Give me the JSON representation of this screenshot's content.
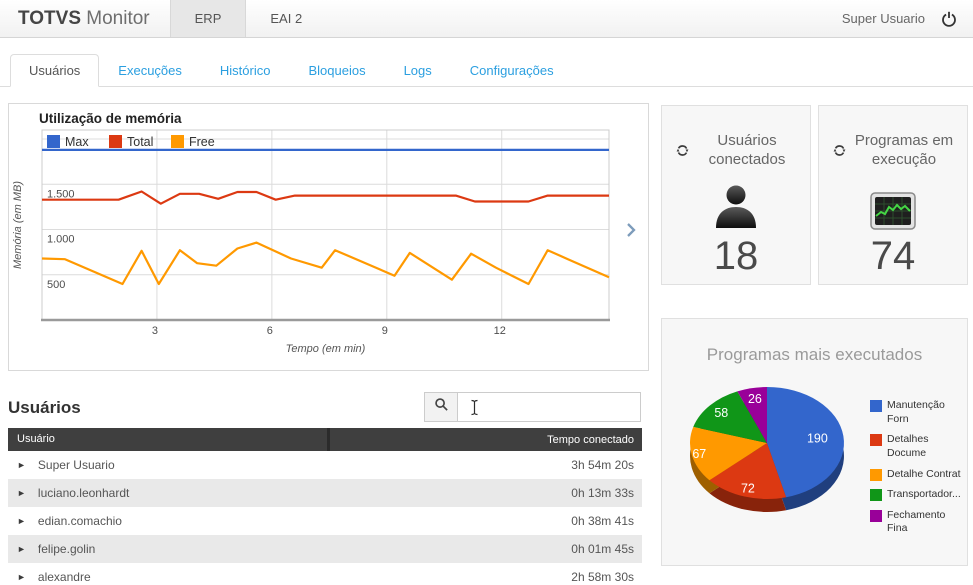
{
  "header": {
    "brand_bold": "TOTVS",
    "brand_light": " Monitor",
    "env_tabs": [
      {
        "label": "ERP",
        "active": true
      },
      {
        "label": "EAI 2",
        "active": false
      }
    ],
    "user_label": "Super Usuario"
  },
  "nav": {
    "tabs": [
      "Usuários",
      "Execuções",
      "Histórico",
      "Bloqueios",
      "Logs",
      "Configurações"
    ],
    "active": "Usuários"
  },
  "memory_panel": {
    "title": "Utilização de memória"
  },
  "cards": [
    {
      "title": "Usuários conectados",
      "value": "18",
      "icon": "user-silhouette-icon"
    },
    {
      "title": "Programas em execução",
      "value": "74",
      "icon": "monitor-graph-icon"
    }
  ],
  "pie_panel": {
    "title": "Programas mais executados"
  },
  "users": {
    "heading": "Usuários",
    "search_value": "",
    "columns": [
      "Usuário",
      "Tempo conectado"
    ],
    "rows": [
      {
        "name": "Super Usuario",
        "time": "3h 54m 20s"
      },
      {
        "name": "luciano.leonhardt",
        "time": "0h 13m 33s"
      },
      {
        "name": "edian.comachio",
        "time": "0h 38m 41s"
      },
      {
        "name": "felipe.golin",
        "time": "0h 01m 45s"
      },
      {
        "name": "alexandre",
        "time": "2h 58m 30s"
      }
    ]
  },
  "icons": {
    "row_expand": "►"
  },
  "colors": {
    "nav_link": "#2b9fe0",
    "table_header_bg": "#3f3f3f",
    "panel_bg": "#f7f7f7",
    "series_blue": "#3366CC",
    "series_red": "#DC3912",
    "series_orange": "#FF9900",
    "series_green": "#109618",
    "series_purple": "#990099"
  },
  "chart_data": [
    {
      "type": "line",
      "title": "Utilização de memória",
      "xlabel": "Tempo (em min)",
      "ylabel": "Memória (em MB)",
      "xlim": [
        0,
        14.8
      ],
      "ylim": [
        0,
        2100
      ],
      "xticks": [
        3,
        6,
        9,
        12
      ],
      "yticks": [
        {
          "v": 500,
          "label": "500"
        },
        {
          "v": 1000,
          "label": "1.000"
        },
        {
          "v": 1500,
          "label": "1.500"
        },
        {
          "v": 2000,
          "label": ""
        }
      ],
      "grid": true,
      "legend_position": "top-left-inside",
      "series": [
        {
          "name": "Max",
          "color": "#3366CC",
          "x": [
            0,
            14.8
          ],
          "y": [
            1880,
            1880
          ]
        },
        {
          "name": "Total",
          "color": "#DC3912",
          "x": [
            0,
            2.0,
            2.6,
            3.1,
            3.6,
            4.1,
            4.6,
            5.1,
            5.6,
            6.1,
            6.6,
            10.8,
            11.3,
            12.7,
            13.2,
            14.8
          ],
          "y": [
            1330,
            1330,
            1420,
            1285,
            1395,
            1395,
            1340,
            1415,
            1415,
            1330,
            1375,
            1375,
            1310,
            1310,
            1375,
            1375
          ]
        },
        {
          "name": "Free",
          "color": "#FF9900",
          "x": [
            0,
            0.6,
            2.1,
            2.6,
            3.05,
            3.6,
            4.05,
            4.55,
            5.1,
            5.6,
            6.5,
            7.3,
            7.65,
            9.2,
            9.6,
            10.7,
            11.2,
            11.85,
            12.7,
            13.2,
            13.75,
            14.8
          ],
          "y": [
            680,
            672,
            398,
            765,
            398,
            772,
            628,
            600,
            790,
            855,
            680,
            578,
            772,
            490,
            742,
            445,
            733,
            578,
            398,
            772,
            668,
            472
          ]
        }
      ]
    },
    {
      "type": "pie",
      "title": "Programas mais executados",
      "labels": [
        "Manutenção Forn",
        "Detalhes Docume",
        "Detalhe Contrat",
        "Transportador...",
        "Fechamento Fina"
      ],
      "values": [
        190,
        72,
        67,
        58,
        26
      ],
      "colors": [
        "#3366CC",
        "#DC3912",
        "#FF9900",
        "#109618",
        "#990099"
      ],
      "legend": [
        {
          "line1": "Manutenção",
          "line2": "Forn"
        },
        {
          "line1": "Detalhes",
          "line2": "Docume"
        },
        {
          "line1": "Detalhe Contrat",
          "line2": ""
        },
        {
          "line1": "Transportador...",
          "line2": ""
        },
        {
          "line1": "Fechamento",
          "line2": "Fina"
        }
      ],
      "legend_position": "right",
      "style": "3d"
    }
  ]
}
